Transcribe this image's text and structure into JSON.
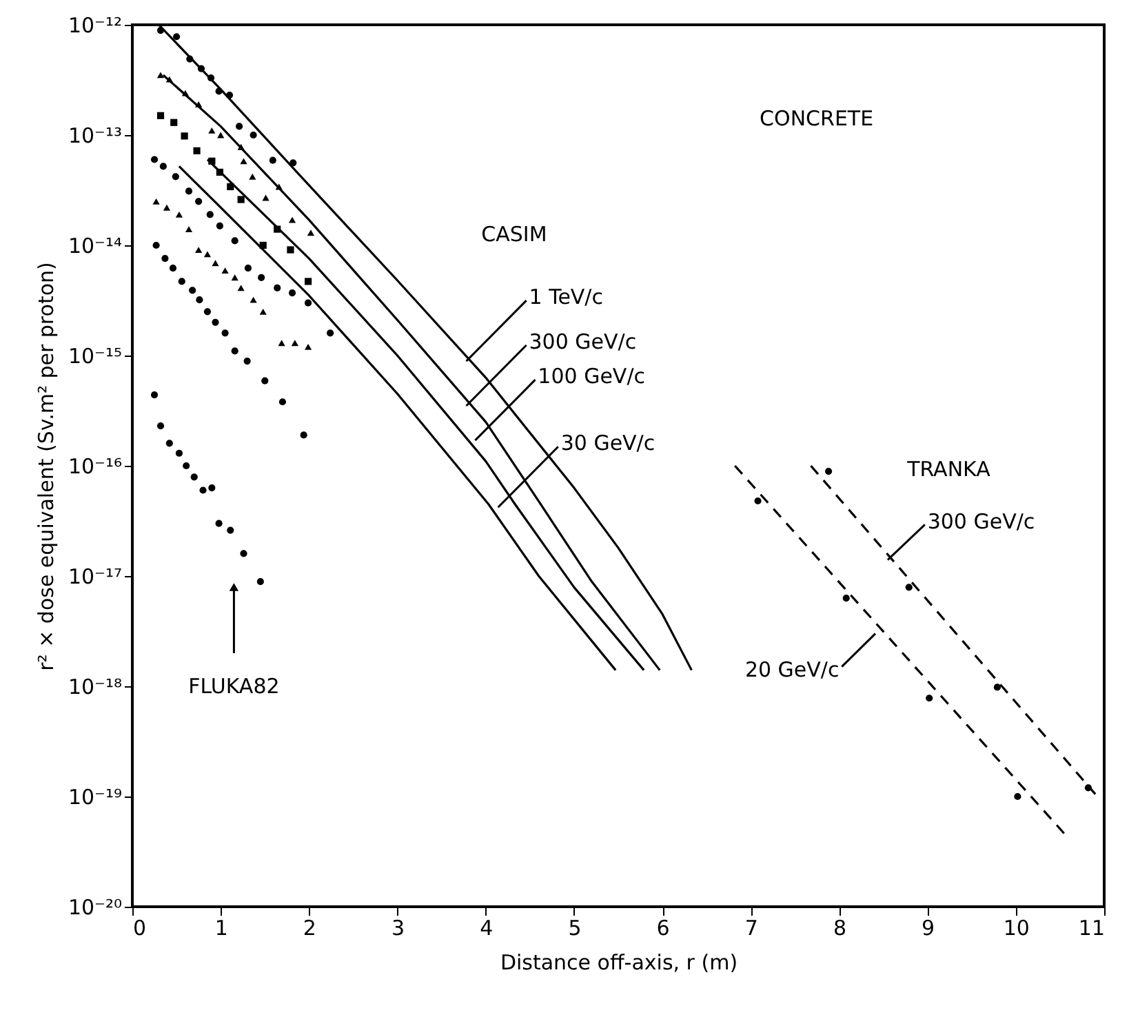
{
  "chart_data": {
    "type": "line",
    "xlabel": "Distance off-axis, r (m)",
    "ylabel": "r² × dose equivalent (Sv.m² per proton)",
    "log": "y",
    "grid": false,
    "xlim": [
      0,
      11
    ],
    "xticks": [
      0,
      1,
      2,
      3,
      4,
      5,
      6,
      7,
      8,
      9,
      10,
      11
    ],
    "ylim": [
      1e-20,
      1e-12
    ],
    "yticks": [
      {
        "value": 1e-20,
        "label": "10⁻²⁰"
      },
      {
        "value": 1e-19,
        "label": "10⁻¹⁹"
      },
      {
        "value": 1e-18,
        "label": "10⁻¹⁸"
      },
      {
        "value": 1e-17,
        "label": "10⁻¹⁷"
      },
      {
        "value": 1e-16,
        "label": "10⁻¹⁶"
      },
      {
        "value": 1e-15,
        "label": "10⁻¹⁵"
      },
      {
        "value": 1e-14,
        "label": "10⁻¹⁴"
      },
      {
        "value": 1e-13,
        "label": "10⁻¹³"
      },
      {
        "value": 1e-12,
        "label": "10⁻¹²"
      }
    ],
    "annotations": [
      "CONCRETE",
      "CASIM",
      {
        "text": "1 TeV/c",
        "x": 3.78,
        "y": 8.9e-16
      },
      {
        "text": "300 GeV/c",
        "x": 3.78,
        "y": 3.5e-16
      },
      {
        "text": "100 GeV/c",
        "x": 3.88,
        "y": 1.7e-16
      },
      {
        "text": "30 GeV/c",
        "x": 4.14,
        "y": 4.2e-17
      },
      "TRANKA",
      {
        "text": "300 GeV/c",
        "x": 8.55,
        "y": 1.4e-17
      },
      {
        "text": "20 GeV/c",
        "x": 8.41,
        "y": 3e-18
      },
      "FLUKA82"
    ],
    "series": [
      {
        "color": "#000000",
        "line_style": "solid",
        "x": [
          0.3,
          1,
          2,
          3,
          4,
          5,
          5.5,
          6,
          6.33
        ],
        "values": [
          1e-12,
          2.6e-13,
          3.5e-14,
          4.8e-15,
          6.3e-16,
          6.3e-17,
          1.8e-17,
          4.5e-18,
          1.4e-18
        ]
      },
      {
        "color": "#000000",
        "line_style": "solid",
        "x": [
          0.35,
          1,
          2,
          3,
          4,
          4.62,
          5.2,
          5.97
        ],
        "values": [
          3.5e-13,
          1.2e-13,
          1.7e-14,
          2.1e-15,
          2.5e-16,
          4.5e-17,
          8.9e-18,
          1.4e-18
        ]
      },
      {
        "color": "#000000",
        "line_style": "solid",
        "x": [
          0.85,
          2,
          3,
          4,
          4.33,
          5,
          5.79
        ],
        "values": [
          6e-14,
          7.6e-15,
          1e-15,
          1.1e-16,
          4.5e-17,
          7.9e-18,
          1.4e-18
        ]
      },
      {
        "color": "#000000",
        "line_style": "solid",
        "x": [
          0.53,
          1,
          2,
          3,
          4.03,
          4.6,
          5.47
        ],
        "values": [
          5.2e-14,
          2.2e-14,
          3.5e-15,
          4.5e-16,
          4.5e-17,
          1e-17,
          1.4e-18
        ]
      },
      {
        "color": "#000000",
        "line_style": "dashed",
        "x": [
          6.82,
          10.56
        ],
        "values": [
          1e-16,
          4.5e-20
        ]
      },
      {
        "color": "#000000",
        "line_style": "dashed",
        "x": [
          7.68,
          10.9
        ],
        "values": [
          1e-16,
          1.05e-19
        ]
      },
      {
        "type": "scatter",
        "color": "#000000",
        "marker": "circle",
        "x": [
          0.32,
          0.5,
          0.65,
          0.78,
          0.89,
          0.98,
          1.1,
          1.37,
          1.82
        ],
        "values": [
          8.9e-13,
          7.8e-13,
          4.9e-13,
          4e-13,
          3.3e-13,
          2.5e-13,
          2.3e-13,
          1e-13,
          5.6e-14
        ]
      },
      {
        "type": "scatter",
        "color": "#000000",
        "marker": "circle",
        "x": [
          1.21,
          1.59
        ],
        "values": [
          1.2e-13,
          5.9e-14
        ]
      },
      {
        "type": "scatter",
        "color": "#000000",
        "marker": "triangle",
        "x": [
          0.32,
          0.42,
          0.6,
          0.75,
          0.9,
          1.0,
          1.23,
          1.26,
          1.36,
          1.51,
          1.66,
          1.81,
          2.02
        ],
        "values": [
          3.5e-13,
          3.2e-13,
          2.4e-13,
          1.9e-13,
          1.1e-13,
          1e-13,
          7.8e-14,
          5.8e-14,
          4.2e-14,
          2.7e-14,
          3.4e-14,
          1.7e-14,
          1.3e-14
        ]
      },
      {
        "type": "scatter",
        "color": "#000000",
        "marker": "square",
        "x": [
          0.32,
          0.47,
          0.59,
          0.73,
          0.9,
          0.99,
          1.11,
          1.23,
          1.48,
          1.64,
          1.79,
          1.99
        ],
        "values": [
          1.5e-13,
          1.3e-13,
          9.8e-14,
          7.2e-14,
          5.8e-14,
          4.6e-14,
          3.4e-14,
          2.6e-14,
          1e-14,
          1.4e-14,
          9.1e-15,
          4.7e-15
        ]
      },
      {
        "type": "scatter",
        "color": "#000000",
        "marker": "circle",
        "x": [
          0.25,
          0.35,
          0.49,
          0.64,
          0.75,
          0.88,
          0.99,
          1.16,
          1.31,
          1.46,
          1.64,
          1.81,
          1.99,
          2.24
        ],
        "values": [
          6e-14,
          5.2e-14,
          4.2e-14,
          3.1e-14,
          2.5e-14,
          1.9e-14,
          1.5e-14,
          1.1e-14,
          6.2e-15,
          5.1e-15,
          4.1e-15,
          3.7e-15,
          3e-15,
          1.6e-15
        ]
      },
      {
        "type": "scatter",
        "color": "#000000",
        "marker": "triangle",
        "x": [
          0.27,
          0.39,
          0.53,
          0.64,
          0.75,
          0.85,
          0.94,
          1.05,
          1.16,
          1.23,
          1.37,
          1.48,
          1.69,
          1.84,
          1.99
        ],
        "values": [
          2.5e-14,
          2.2e-14,
          1.9e-14,
          1.4e-14,
          9.1e-15,
          8.3e-15,
          6.9e-15,
          5.9e-15,
          5.1e-15,
          4.1e-15,
          3.2e-15,
          2.5e-15,
          1.3e-15,
          1.3e-15,
          1.2e-15
        ]
      },
      {
        "type": "scatter",
        "color": "#000000",
        "marker": "circle",
        "x": [
          0.27,
          0.37,
          0.46,
          0.56,
          0.68,
          0.76,
          0.85,
          0.94,
          1.05,
          1.16,
          1.3,
          1.5,
          1.7,
          1.94
        ],
        "values": [
          1e-14,
          7.6e-15,
          6.2e-15,
          4.7e-15,
          3.9e-15,
          3.2e-15,
          2.5e-15,
          2e-15,
          1.6e-15,
          1.1e-15,
          8.9e-16,
          5.9e-16,
          3.8e-16,
          1.9e-16
        ]
      },
      {
        "type": "scatter",
        "color": "#000000",
        "marker": "circle",
        "x": [
          0.25,
          0.32,
          0.42,
          0.53,
          0.61,
          0.7,
          0.8,
          0.9,
          0.98,
          1.11,
          1.26,
          1.45
        ],
        "values": [
          4.4e-16,
          2.3e-16,
          1.6e-16,
          1.3e-16,
          1e-16,
          7.9e-17,
          6e-17,
          6.3e-17,
          3e-17,
          2.6e-17,
          1.6e-17,
          8.9e-18
        ]
      },
      {
        "type": "scatter",
        "color": "#000000",
        "marker": "circle",
        "x": [
          7.08,
          8.08,
          9.02,
          10.02
        ],
        "values": [
          4.8e-17,
          6.3e-18,
          7.8e-19,
          1e-19
        ]
      },
      {
        "type": "scatter",
        "color": "#000000",
        "marker": "circle",
        "x": [
          7.88,
          8.79,
          9.79,
          10.82
        ],
        "values": [
          8.9e-17,
          7.9e-18,
          9.8e-19,
          1.2e-19
        ]
      }
    ]
  }
}
